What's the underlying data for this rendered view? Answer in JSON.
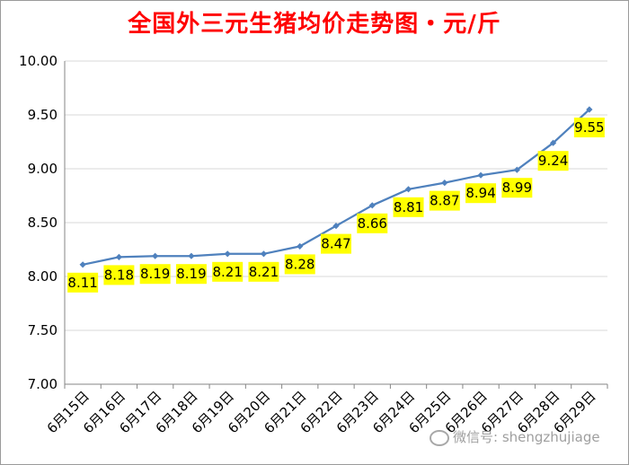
{
  "chart_data": {
    "type": "line",
    "title": "全国外三元生猪均价走势图・元/斤",
    "xlabel": "",
    "ylabel": "",
    "categories": [
      "6月15日",
      "6月16日",
      "6月17日",
      "6月18日",
      "6月19日",
      "6月20日",
      "6月21日",
      "6月22日",
      "6月23日",
      "6月24日",
      "6月25日",
      "6月26日",
      "6月27日",
      "6月28日",
      "6月29日"
    ],
    "series": [
      {
        "values": [
          8.11,
          8.18,
          8.19,
          8.19,
          8.21,
          8.21,
          8.28,
          8.47,
          8.66,
          8.81,
          8.87,
          8.94,
          8.99,
          9.24,
          9.55
        ]
      }
    ],
    "data_labels": [
      "8.11",
      "8.18",
      "8.19",
      "8.19",
      "8.21",
      "8.21",
      "8.28",
      "8.47",
      "8.66",
      "8.81",
      "8.87",
      "8.94",
      "8.99",
      "9.24",
      "9.55"
    ],
    "y_ticks": [
      "7.00",
      "7.50",
      "8.00",
      "8.50",
      "9.00",
      "9.50",
      "10.00"
    ],
    "ylim": [
      7.0,
      10.0
    ],
    "grid": true,
    "legend": "none",
    "colors": {
      "line": "#4f81bd",
      "label_bg": "#ffff00",
      "title": "#ff0000",
      "grid": "#d9d9d9"
    }
  },
  "watermark": {
    "text": "微信号: shengzhujiage",
    "icon": "wechat-icon"
  }
}
